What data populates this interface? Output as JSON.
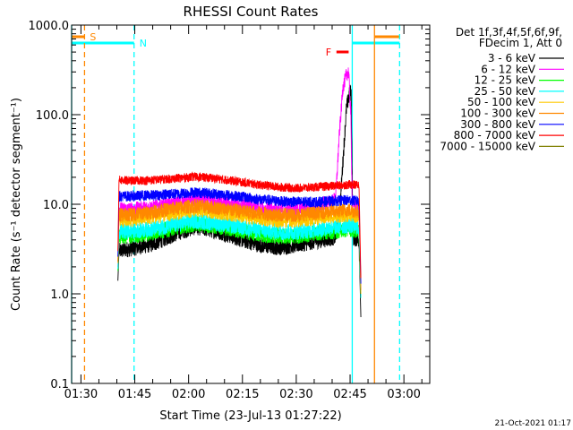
{
  "chart_data": {
    "type": "line",
    "title": "RHESSI Count Rates",
    "xlabel": "Start Time (23-Jul-13 01:27:22)",
    "ylabel": "Count Rate (s⁻¹ detector segment⁻¹)",
    "yscale": "log",
    "ylim": [
      0.1,
      1000
    ],
    "xlim_minutes": [
      87.4,
      187.2
    ],
    "x_ticks": [
      {
        "label": "01:30",
        "min": 90
      },
      {
        "label": "01:45",
        "min": 105
      },
      {
        "label": "02:00",
        "min": 120
      },
      {
        "label": "02:15",
        "min": 135
      },
      {
        "label": "02:30",
        "min": 150
      },
      {
        "label": "02:45",
        "min": 165
      },
      {
        "label": "03:00",
        "min": 180
      }
    ],
    "y_ticks": [
      {
        "label": "0.1",
        "v": 0.1
      },
      {
        "label": "1.0",
        "v": 1
      },
      {
        "label": "10.0",
        "v": 10
      },
      {
        "label": "100.0",
        "v": 100
      },
      {
        "label": "1000.0",
        "v": 1000
      }
    ],
    "legend": {
      "position": "right",
      "header": [
        "Det 1f,3f,4f,5f,6f,9f,",
        "FDecim 1, Att 0"
      ]
    },
    "series": [
      {
        "name": "3 - 6 keV",
        "color": "#000000",
        "points": [
          [
            100.3,
            1.4
          ],
          [
            100.6,
            3.0
          ],
          [
            104,
            3.2
          ],
          [
            110,
            3.6
          ],
          [
            117,
            4.8
          ],
          [
            122,
            5.6
          ],
          [
            128,
            5.0
          ],
          [
            135,
            4.0
          ],
          [
            140,
            3.5
          ],
          [
            145,
            3.3
          ],
          [
            150,
            3.5
          ],
          [
            156,
            3.9
          ],
          [
            161,
            4.3
          ],
          [
            162,
            7
          ],
          [
            163,
            30
          ],
          [
            164,
            120
          ],
          [
            165,
            180
          ],
          [
            165.3,
            170
          ],
          [
            165.8,
            4.2
          ],
          [
            167.5,
            4.0
          ],
          [
            168,
            0.55
          ]
        ]
      },
      {
        "name": "6 - 12 keV",
        "color": "#ff00ff",
        "points": [
          [
            100.3,
            2.0
          ],
          [
            100.6,
            8.8
          ],
          [
            104,
            8.8
          ],
          [
            110,
            9.3
          ],
          [
            117,
            10.3
          ],
          [
            122,
            11.3
          ],
          [
            128,
            10.6
          ],
          [
            135,
            9.6
          ],
          [
            140,
            9.0
          ],
          [
            145,
            8.6
          ],
          [
            150,
            8.6
          ],
          [
            156,
            9.3
          ],
          [
            158,
            10.5
          ],
          [
            160,
            10.6
          ],
          [
            161,
            12
          ],
          [
            162,
            60
          ],
          [
            163,
            200
          ],
          [
            164,
            280
          ],
          [
            164.6,
            300
          ],
          [
            165.2,
            100
          ],
          [
            165.6,
            10.0
          ],
          [
            167.5,
            9.6
          ],
          [
            168,
            1.0
          ]
        ]
      },
      {
        "name": "12 - 25 keV",
        "color": "#00ff00",
        "points": [
          [
            100.3,
            1.8
          ],
          [
            100.6,
            4.4
          ],
          [
            104,
            4.4
          ],
          [
            110,
            4.8
          ],
          [
            117,
            5.6
          ],
          [
            122,
            6.0
          ],
          [
            128,
            5.7
          ],
          [
            135,
            5.0
          ],
          [
            140,
            4.6
          ],
          [
            145,
            4.4
          ],
          [
            150,
            4.4
          ],
          [
            156,
            4.8
          ],
          [
            161,
            5.0
          ],
          [
            165,
            5.3
          ],
          [
            167.5,
            5.0
          ],
          [
            168,
            0.9
          ]
        ]
      },
      {
        "name": "25 - 50 keV",
        "color": "#00ffff",
        "points": [
          [
            100.3,
            1.9
          ],
          [
            100.6,
            4.9
          ],
          [
            104,
            5.0
          ],
          [
            110,
            5.3
          ],
          [
            117,
            6.0
          ],
          [
            122,
            6.5
          ],
          [
            128,
            6.1
          ],
          [
            135,
            5.5
          ],
          [
            140,
            5.1
          ],
          [
            145,
            4.9
          ],
          [
            150,
            4.9
          ],
          [
            156,
            5.2
          ],
          [
            161,
            5.6
          ],
          [
            165,
            5.8
          ],
          [
            167.5,
            5.5
          ],
          [
            168,
            0.9
          ]
        ]
      },
      {
        "name": "50 - 100 keV",
        "color": "#ffc800",
        "points": [
          [
            100.3,
            2.2
          ],
          [
            100.6,
            6.6
          ],
          [
            104,
            6.7
          ],
          [
            110,
            7.2
          ],
          [
            117,
            8.0
          ],
          [
            122,
            8.6
          ],
          [
            128,
            8.1
          ],
          [
            135,
            7.3
          ],
          [
            140,
            6.9
          ],
          [
            145,
            6.6
          ],
          [
            150,
            6.6
          ],
          [
            156,
            7.0
          ],
          [
            161,
            7.4
          ],
          [
            165,
            7.6
          ],
          [
            167.5,
            7.2
          ],
          [
            168,
            1.0
          ]
        ]
      },
      {
        "name": "100 - 300 keV",
        "color": "#ff8800",
        "points": [
          [
            100.3,
            2.3
          ],
          [
            100.6,
            7.6
          ],
          [
            104,
            7.7
          ],
          [
            110,
            8.2
          ],
          [
            117,
            9.1
          ],
          [
            122,
            9.6
          ],
          [
            128,
            9.1
          ],
          [
            135,
            8.3
          ],
          [
            140,
            7.9
          ],
          [
            145,
            7.6
          ],
          [
            150,
            7.6
          ],
          [
            156,
            8.0
          ],
          [
            161,
            8.4
          ],
          [
            165,
            8.6
          ],
          [
            167.5,
            8.2
          ],
          [
            168,
            1.1
          ]
        ]
      },
      {
        "name": "300 - 800 keV",
        "color": "#0000ff",
        "points": [
          [
            100.3,
            2.6
          ],
          [
            100.6,
            12.3
          ],
          [
            104,
            12.3
          ],
          [
            110,
            12.6
          ],
          [
            117,
            13.1
          ],
          [
            122,
            13.6
          ],
          [
            128,
            13.0
          ],
          [
            135,
            12.1
          ],
          [
            140,
            11.3
          ],
          [
            145,
            10.8
          ],
          [
            150,
            10.6
          ],
          [
            156,
            10.6
          ],
          [
            161,
            10.9
          ],
          [
            165,
            11.1
          ],
          [
            167.5,
            10.8
          ],
          [
            168,
            1.3
          ]
        ]
      },
      {
        "name": "800 - 7000 keV",
        "color": "#ff0000",
        "points": [
          [
            100.3,
            3.0
          ],
          [
            100.6,
            18.6
          ],
          [
            104,
            18.3
          ],
          [
            110,
            18.6
          ],
          [
            117,
            19.5
          ],
          [
            122,
            20.3
          ],
          [
            128,
            19.3
          ],
          [
            135,
            17.6
          ],
          [
            140,
            16.4
          ],
          [
            145,
            15.6
          ],
          [
            150,
            15.1
          ],
          [
            156,
            15.6
          ],
          [
            161,
            16.1
          ],
          [
            165,
            16.6
          ],
          [
            167.5,
            16.4
          ],
          [
            168,
            1.5
          ]
        ]
      },
      {
        "name": "7000 - 15000 keV",
        "color": "#808000",
        "points": []
      }
    ],
    "vlines": [
      {
        "min": 87.4,
        "color": "#00ffff",
        "style": "solid"
      },
      {
        "min": 91.0,
        "color": "#ff8800",
        "style": "dashed"
      },
      {
        "min": 104.8,
        "color": "#00ffff",
        "style": "dashed"
      },
      {
        "min": 165.6,
        "color": "#00ffff",
        "style": "solid"
      },
      {
        "min": 171.8,
        "color": "#ff8800",
        "style": "solid"
      },
      {
        "min": 178.8,
        "color": "#00ffff",
        "style": "dashed"
      }
    ],
    "annotations": [
      {
        "text": "S",
        "color": "#ff8800"
      },
      {
        "text": "N",
        "color": "#00ffff"
      },
      {
        "text": "F",
        "color": "#ff0000"
      }
    ],
    "timestamp": "21-Oct-2021 01:17"
  }
}
